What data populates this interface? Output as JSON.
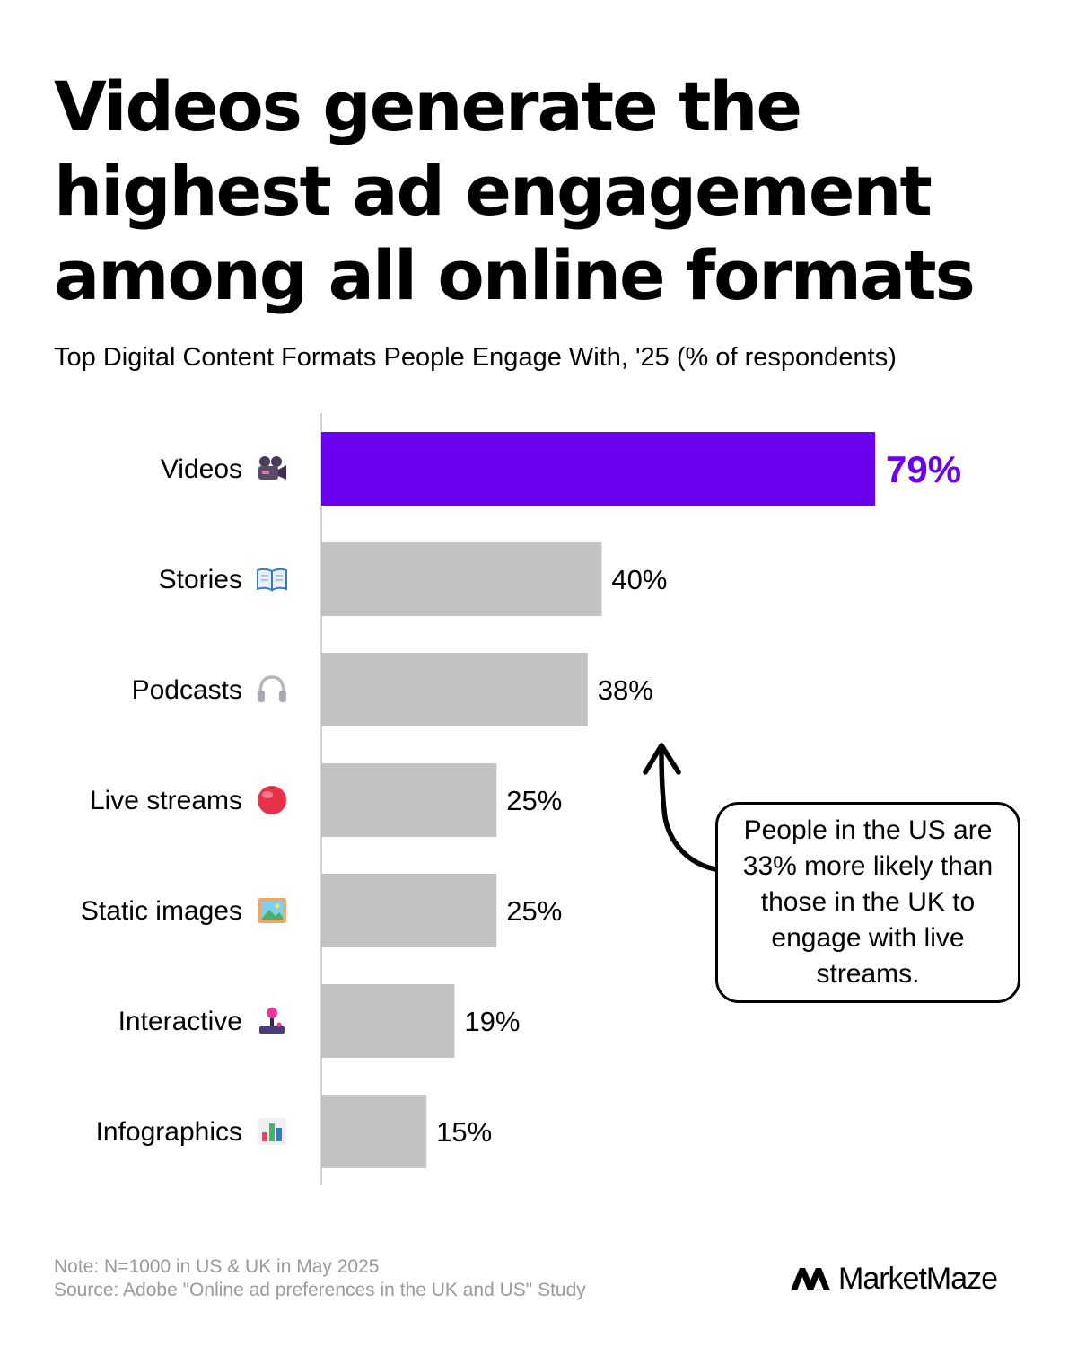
{
  "header": {
    "title": "Videos generate the highest ad engagement among all online formats",
    "subtitle": "Top Digital Content Formats People Engage With, '25 (% of respondents)"
  },
  "chart_data": {
    "type": "bar",
    "orientation": "horizontal",
    "categories": [
      "Videos",
      "Stories",
      "Podcasts",
      "Live streams",
      "Static images",
      "Interactive",
      "Infographics"
    ],
    "icons": [
      "movie-camera-icon",
      "open-book-icon",
      "headphones-icon",
      "red-circle-icon",
      "framed-picture-icon",
      "joystick-icon",
      "bar-chart-icon"
    ],
    "values": [
      79,
      40,
      38,
      25,
      25,
      19,
      15
    ],
    "value_labels": [
      "79%",
      "40%",
      "38%",
      "25%",
      "25%",
      "19%",
      "15%"
    ],
    "highlight_index": 0,
    "xlim": [
      0,
      100
    ],
    "grid": false,
    "colors": {
      "highlight": "#6a00ee",
      "bar": "#c2c2c2",
      "axis": "#d4d4d4"
    }
  },
  "annotation": {
    "text": "People in the US are 33% more likely than those in the UK to engage with live streams."
  },
  "footer": {
    "note": "Note: N=1000 in US & UK in May 2025",
    "source": "Source: Adobe \"Online ad preferences in the UK and US\" Study"
  },
  "brand": {
    "name": "MarketMaze",
    "logo_icon": "marketmaze-logo-icon"
  }
}
